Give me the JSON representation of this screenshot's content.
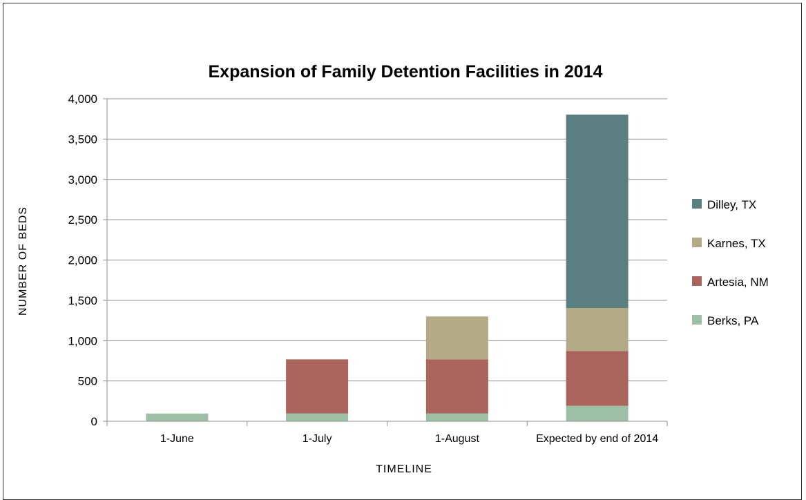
{
  "chart_data": {
    "type": "bar",
    "stacked": true,
    "title": "Expansion of Family Detention Facilities in 2014",
    "xlabel": "TIMELINE",
    "ylabel": "NUMBER OF BEDS",
    "categories": [
      "1-June",
      "1-July",
      "1-August",
      "Expected by end of 2014"
    ],
    "ylim": [
      0,
      4000
    ],
    "yticks": [
      0,
      500,
      1000,
      1500,
      2000,
      2500,
      3000,
      3500,
      4000
    ],
    "ytick_labels": [
      "0",
      "500",
      "1,000",
      "1,500",
      "2,000",
      "2,500",
      "3,000",
      "3,500",
      "4,000"
    ],
    "grid": true,
    "legend_position": "right",
    "series": [
      {
        "name": "Berks, PA",
        "color": "#9dbfa6",
        "values": [
          96,
          96,
          96,
          192
        ]
      },
      {
        "name": "Artesia, NM",
        "color": "#aa645c",
        "values": [
          0,
          672,
          672,
          680
        ]
      },
      {
        "name": "Karnes, TX",
        "color": "#b5aa87",
        "values": [
          0,
          0,
          532,
          532
        ]
      },
      {
        "name": "Dilley, TX",
        "color": "#5b7f81",
        "values": [
          0,
          0,
          0,
          2400
        ]
      }
    ],
    "legend_order": [
      "Dilley, TX",
      "Karnes, TX",
      "Artesia, NM",
      "Berks, PA"
    ]
  }
}
